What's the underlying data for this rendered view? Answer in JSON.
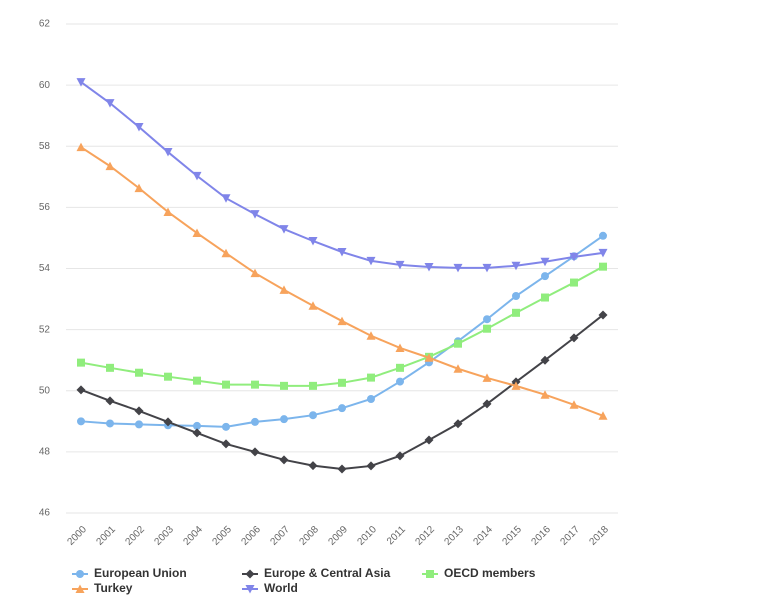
{
  "chart_data": {
    "type": "line",
    "marker_shapes": true,
    "grid": true,
    "legend": "bottom",
    "x": [
      "2000",
      "2001",
      "2002",
      "2003",
      "2004",
      "2005",
      "2006",
      "2007",
      "2008",
      "2009",
      "2010",
      "2011",
      "2012",
      "2013",
      "2014",
      "2015",
      "2016",
      "2017",
      "2018"
    ],
    "ylim": [
      46,
      62
    ],
    "yticks": [
      46,
      48,
      50,
      52,
      54,
      56,
      58,
      60,
      62
    ],
    "series": [
      {
        "name": "European Union",
        "color": "#7cb5ec",
        "marker": "circle",
        "values": [
          49.0,
          48.93,
          48.9,
          48.87,
          48.85,
          48.82,
          48.98,
          49.07,
          49.2,
          49.43,
          49.73,
          50.3,
          50.93,
          51.62,
          52.34,
          53.1,
          53.75,
          54.4,
          55.07
        ]
      },
      {
        "name": "Europe & Central Asia",
        "color": "#434348",
        "marker": "diamond",
        "values": [
          50.03,
          49.67,
          49.34,
          48.98,
          48.62,
          48.26,
          48.0,
          47.74,
          47.55,
          47.44,
          47.54,
          47.87,
          48.39,
          48.92,
          49.57,
          50.29,
          51.0,
          51.73,
          52.48
        ]
      },
      {
        "name": "OECD members",
        "color": "#90ed7d",
        "marker": "square",
        "values": [
          50.92,
          50.75,
          50.59,
          50.46,
          50.33,
          50.2,
          50.2,
          50.16,
          50.16,
          50.26,
          50.43,
          50.75,
          51.11,
          51.54,
          52.03,
          52.55,
          53.05,
          53.54,
          54.06
        ]
      },
      {
        "name": "Turkey",
        "color": "#f7a35c",
        "marker": "triangle",
        "values": [
          57.97,
          57.35,
          56.63,
          55.85,
          55.16,
          54.5,
          53.85,
          53.3,
          52.78,
          52.28,
          51.8,
          51.4,
          51.08,
          50.72,
          50.42,
          50.16,
          49.87,
          49.54,
          49.18
        ]
      },
      {
        "name": "World",
        "color": "#8085e9",
        "marker": "triangle-down",
        "values": [
          60.1,
          59.41,
          58.63,
          57.81,
          57.03,
          56.3,
          55.78,
          55.29,
          54.9,
          54.54,
          54.25,
          54.12,
          54.05,
          54.02,
          54.02,
          54.09,
          54.22,
          54.38,
          54.51
        ]
      }
    ]
  }
}
